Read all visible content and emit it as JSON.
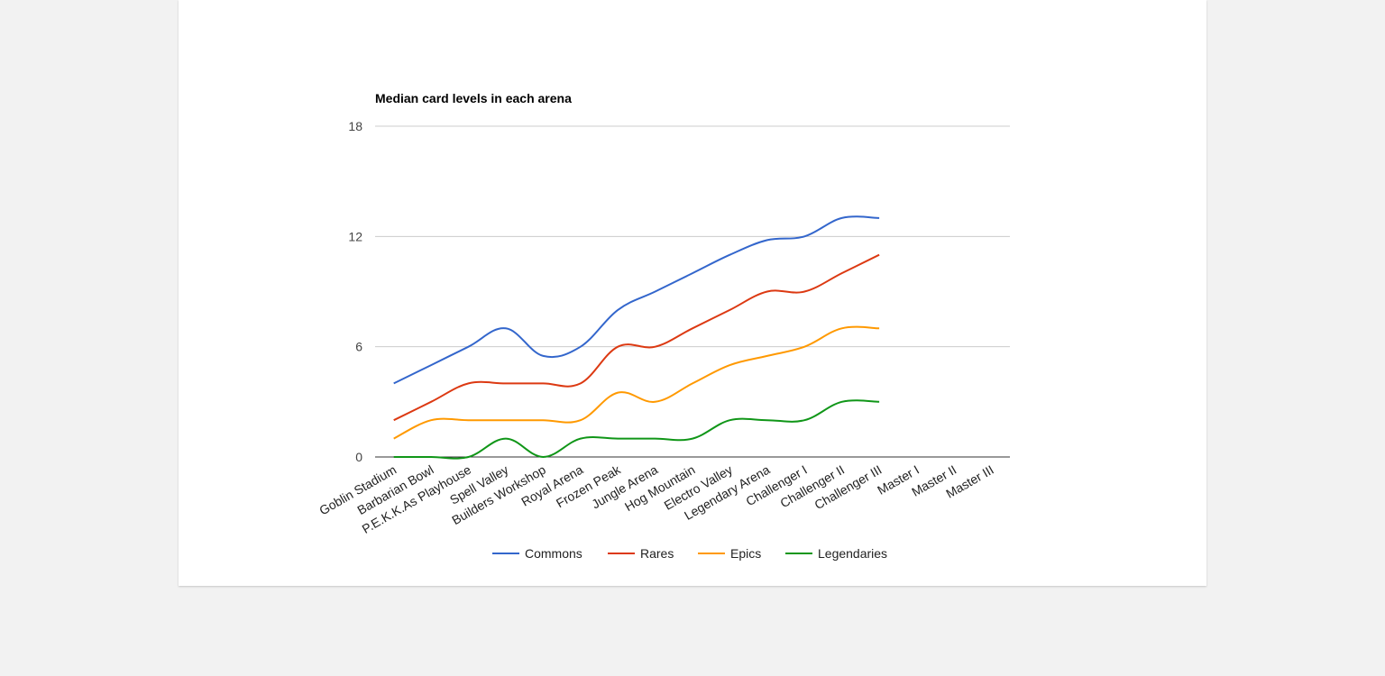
{
  "chart_data": {
    "type": "line",
    "title": "Median card levels in each arena",
    "xlabel": "",
    "ylabel": "",
    "ylim": [
      0,
      18
    ],
    "yticks": [
      0,
      6,
      12,
      18
    ],
    "grid": true,
    "smooth": true,
    "legend_position": "bottom",
    "categories": [
      "Goblin Stadium",
      "Barbarian Bowl",
      "P.E.K.K.As Playhouse",
      "Spell Valley",
      "Builders Workshop",
      "Royal Arena",
      "Frozen Peak",
      "Jungle Arena",
      "Hog Mountain",
      "Electro Valley",
      "Legendary Arena",
      "Challenger I",
      "Challenger II",
      "Challenger III",
      "Master I",
      "Master II",
      "Master III"
    ],
    "series": [
      {
        "name": "Commons",
        "color": "#3366cc",
        "values": [
          4,
          5,
          6,
          7,
          5.5,
          6,
          8,
          9,
          10,
          11,
          11.8,
          12,
          13,
          13,
          null,
          null,
          null
        ]
      },
      {
        "name": "Rares",
        "color": "#dc3912",
        "values": [
          2,
          3,
          4,
          4,
          4,
          4,
          6,
          6,
          7,
          8,
          9,
          9,
          10,
          11,
          null,
          null,
          null
        ]
      },
      {
        "name": "Epics",
        "color": "#ff9900",
        "values": [
          1,
          2,
          2,
          2,
          2,
          2,
          3.5,
          3,
          4,
          5,
          5.5,
          6,
          7,
          7,
          null,
          null,
          null
        ]
      },
      {
        "name": "Legendaries",
        "color": "#109618",
        "values": [
          0,
          0,
          0,
          1,
          0,
          1,
          1,
          1,
          1,
          2,
          2,
          2,
          3,
          3,
          null,
          null,
          null
        ]
      }
    ]
  }
}
